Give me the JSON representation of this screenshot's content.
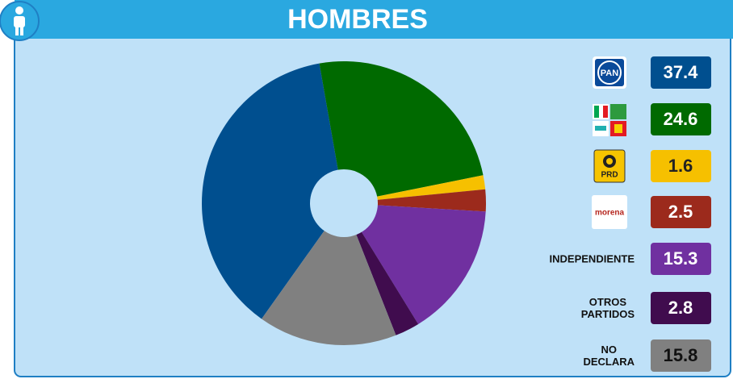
{
  "chart_data": {
    "type": "donut",
    "title": "HOMBRES",
    "categories": [
      "PAN",
      null,
      "PRD",
      "morena",
      "INDEPENDIENTE",
      "OTROS PARTIDOS",
      "NO DECLARA"
    ],
    "values": [
      37.4,
      24.6,
      1.6,
      2.5,
      15.3,
      2.8,
      15.8
    ],
    "colors": [
      "#004f8f",
      "#006a00",
      "#f6c000",
      "#9c2a1c",
      "#7030a0",
      "#400c4e",
      "#808080"
    ]
  }
}
